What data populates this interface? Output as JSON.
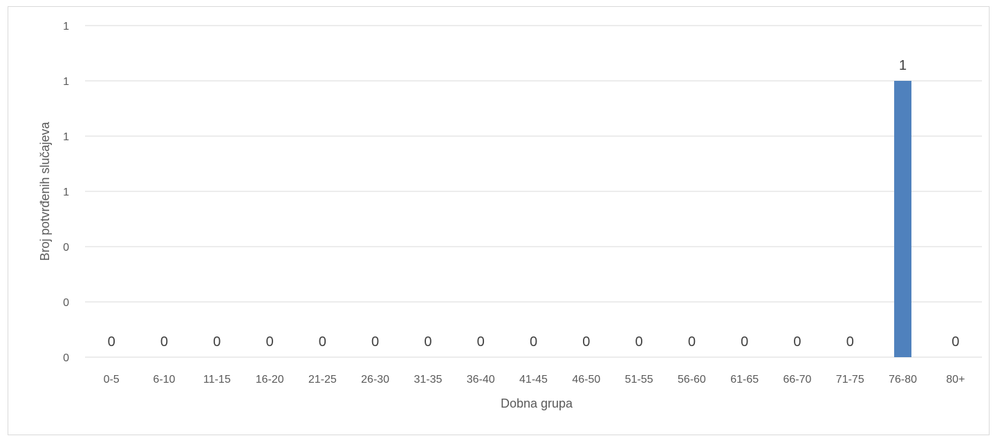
{
  "chart_data": {
    "type": "bar",
    "xlabel": "Dobna grupa",
    "ylabel": "Broj potvrđenih slučajeva",
    "categories": [
      "0-5",
      "6-10",
      "11-15",
      "16-20",
      "21-25",
      "26-30",
      "31-35",
      "36-40",
      "41-45",
      "46-50",
      "51-55",
      "56-60",
      "61-65",
      "66-70",
      "71-75",
      "76-80",
      "80+"
    ],
    "values": [
      0,
      0,
      0,
      0,
      0,
      0,
      0,
      0,
      0,
      0,
      0,
      0,
      0,
      0,
      0,
      1,
      0
    ],
    "data_labels": [
      "0",
      "0",
      "0",
      "0",
      "0",
      "0",
      "0",
      "0",
      "0",
      "0",
      "0",
      "0",
      "0",
      "0",
      "0",
      "1",
      "0"
    ],
    "y_ticks": [
      0,
      0.2,
      0.4,
      0.6,
      0.8,
      1.0,
      1.2
    ],
    "y_tick_labels": [
      "0",
      "0",
      "0",
      "1",
      "1",
      "1",
      "1"
    ],
    "ylim": [
      0,
      1.2
    ],
    "grid": true,
    "legend": "none",
    "bar_color": "#4f81bd"
  }
}
